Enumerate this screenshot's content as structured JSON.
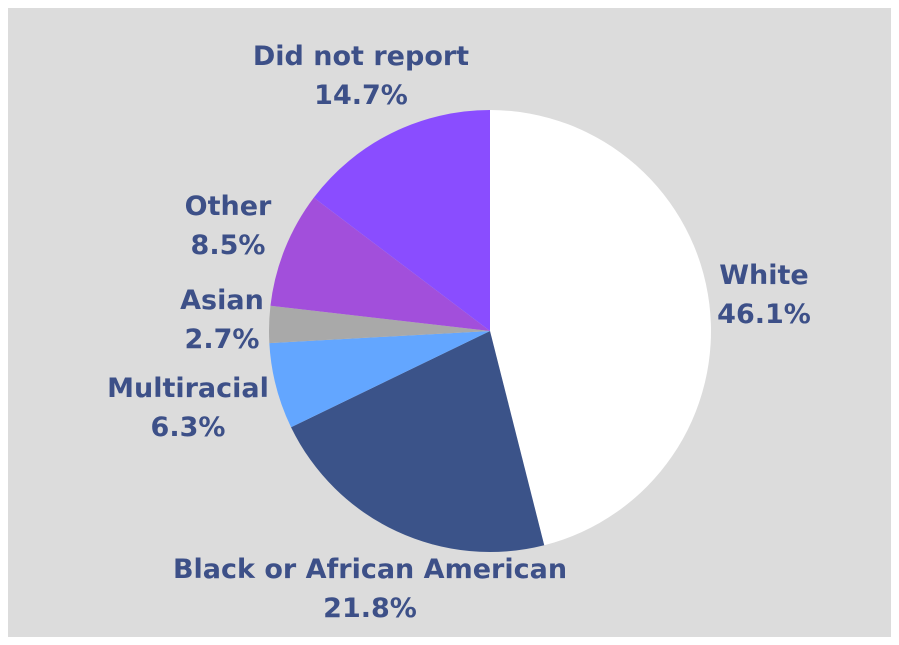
{
  "chart_data": {
    "type": "pie",
    "title": "",
    "legend": "none",
    "label_color": "#3d5088",
    "slices": [
      {
        "name": "White",
        "value": 46.1,
        "value_label": "46.1%",
        "color": "#ffffff"
      },
      {
        "name": "Black or African American",
        "value": 21.8,
        "value_label": "21.8%",
        "color": "#3b5389"
      },
      {
        "name": "Multiracial",
        "value": 6.3,
        "value_label": "6.3%",
        "color": "#63a6ff"
      },
      {
        "name": "Asian",
        "value": 2.7,
        "value_label": "2.7%",
        "color": "#a9a9a9"
      },
      {
        "name": "Other",
        "value": 8.5,
        "value_label": "8.5%",
        "color": "#a24fdb"
      },
      {
        "name": "Did not report",
        "value": 14.7,
        "value_label": "14.7%",
        "color": "#8a4dff"
      }
    ]
  }
}
